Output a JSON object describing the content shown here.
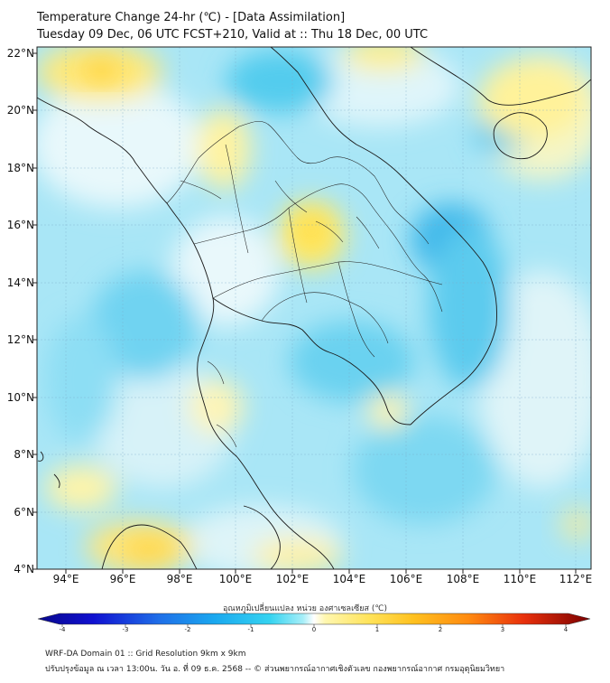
{
  "header": {
    "title_line1": "Temperature Change 24-hr (℃) - [Data Assimilation]",
    "title_line2": "Tuesday 09 Dec, 06 UTC FCST+210, Valid at :: Thu 18 Dec, 00 UTC"
  },
  "map": {
    "lat_labels": [
      "22°N",
      "20°N",
      "18°N",
      "16°N",
      "14°N",
      "12°N",
      "10°N",
      "8°N",
      "6°N",
      "4°N"
    ],
    "lon_labels": [
      "94°E",
      "96°E",
      "98°E",
      "100°E",
      "102°E",
      "104°E",
      "106°E",
      "108°E",
      "110°E",
      "112°E"
    ]
  },
  "colorbar": {
    "title": "อุณหภูมิเปลี่ยนแปลง หน่วย องศาเซลเซียส (℃)",
    "ticks": [
      "-4",
      "-3",
      "-2",
      "-1",
      "0",
      "1",
      "2",
      "3",
      "4"
    ],
    "min": -4,
    "max": 4
  },
  "footer": {
    "line1": "WRF-DA Domain 01 :: Grid Resolution 9km x 9km",
    "line2": "ปรับปรุงข้อมูล ณ เวลา 13:00น. วัน อ. ที่ 09 ธ.ค. 2568 -- © ส่วนพยากรณ์อากาศเชิงตัวเลข กองพยากรณ์อากาศ กรมอุตุนิยมวิทยา"
  }
}
